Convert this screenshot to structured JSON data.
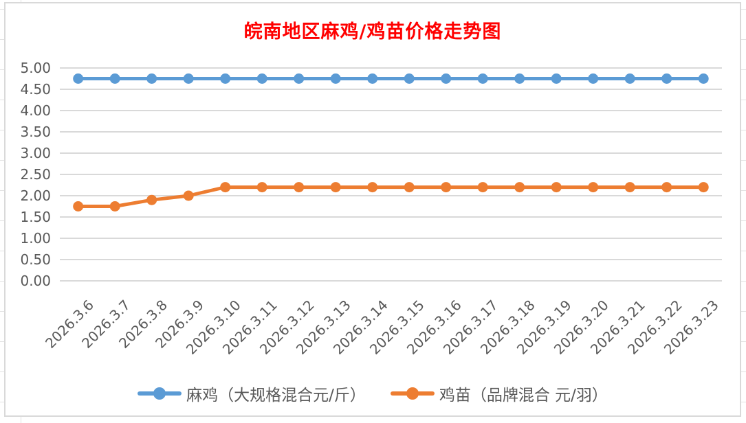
{
  "chart_data": {
    "type": "line",
    "title": "皖南地区麻鸡/鸡苗价格走势图",
    "xlabel": "",
    "ylabel": "",
    "categories": [
      "2026.3.6",
      "2026.3.7",
      "2026.3.8",
      "2026.3.9",
      "2026.3.10",
      "2026.3.11",
      "2026.3.12",
      "2026.3.13",
      "2026.3.14",
      "2026.3.15",
      "2026.3.16",
      "2026.3.17",
      "2026.3.18",
      "2026.3.19",
      "2026.3.20",
      "2026.3.21",
      "2026.3.22",
      "2026.3.23"
    ],
    "series": [
      {
        "name": "麻鸡（大规格混合元/斤）",
        "color": "#5b9bd5",
        "values": [
          4.75,
          4.75,
          4.75,
          4.75,
          4.75,
          4.75,
          4.75,
          4.75,
          4.75,
          4.75,
          4.75,
          4.75,
          4.75,
          4.75,
          4.75,
          4.75,
          4.75,
          4.75
        ]
      },
      {
        "name": "鸡苗（品牌混合 元/羽）",
        "color": "#ed7d31",
        "values": [
          1.75,
          1.75,
          1.9,
          2.0,
          2.2,
          2.2,
          2.2,
          2.2,
          2.2,
          2.2,
          2.2,
          2.2,
          2.2,
          2.2,
          2.2,
          2.2,
          2.2,
          2.2
        ]
      }
    ],
    "ylim": [
      0,
      5
    ],
    "ytick_step": 0.5,
    "ytick_labels": [
      "5.00",
      "4.50",
      "4.00",
      "3.50",
      "3.00",
      "2.50",
      "2.00",
      "1.50",
      "1.00",
      "0.50",
      "0.00"
    ],
    "grid": true,
    "legend_position": "bottom"
  },
  "style": {
    "title_color": "#ff0000",
    "axis_text_color": "#595959",
    "legend_text_color": "#595959",
    "gridline_color": "#d9d9d9",
    "chart_border_color": "#d9d9d9",
    "marker": "circle"
  }
}
